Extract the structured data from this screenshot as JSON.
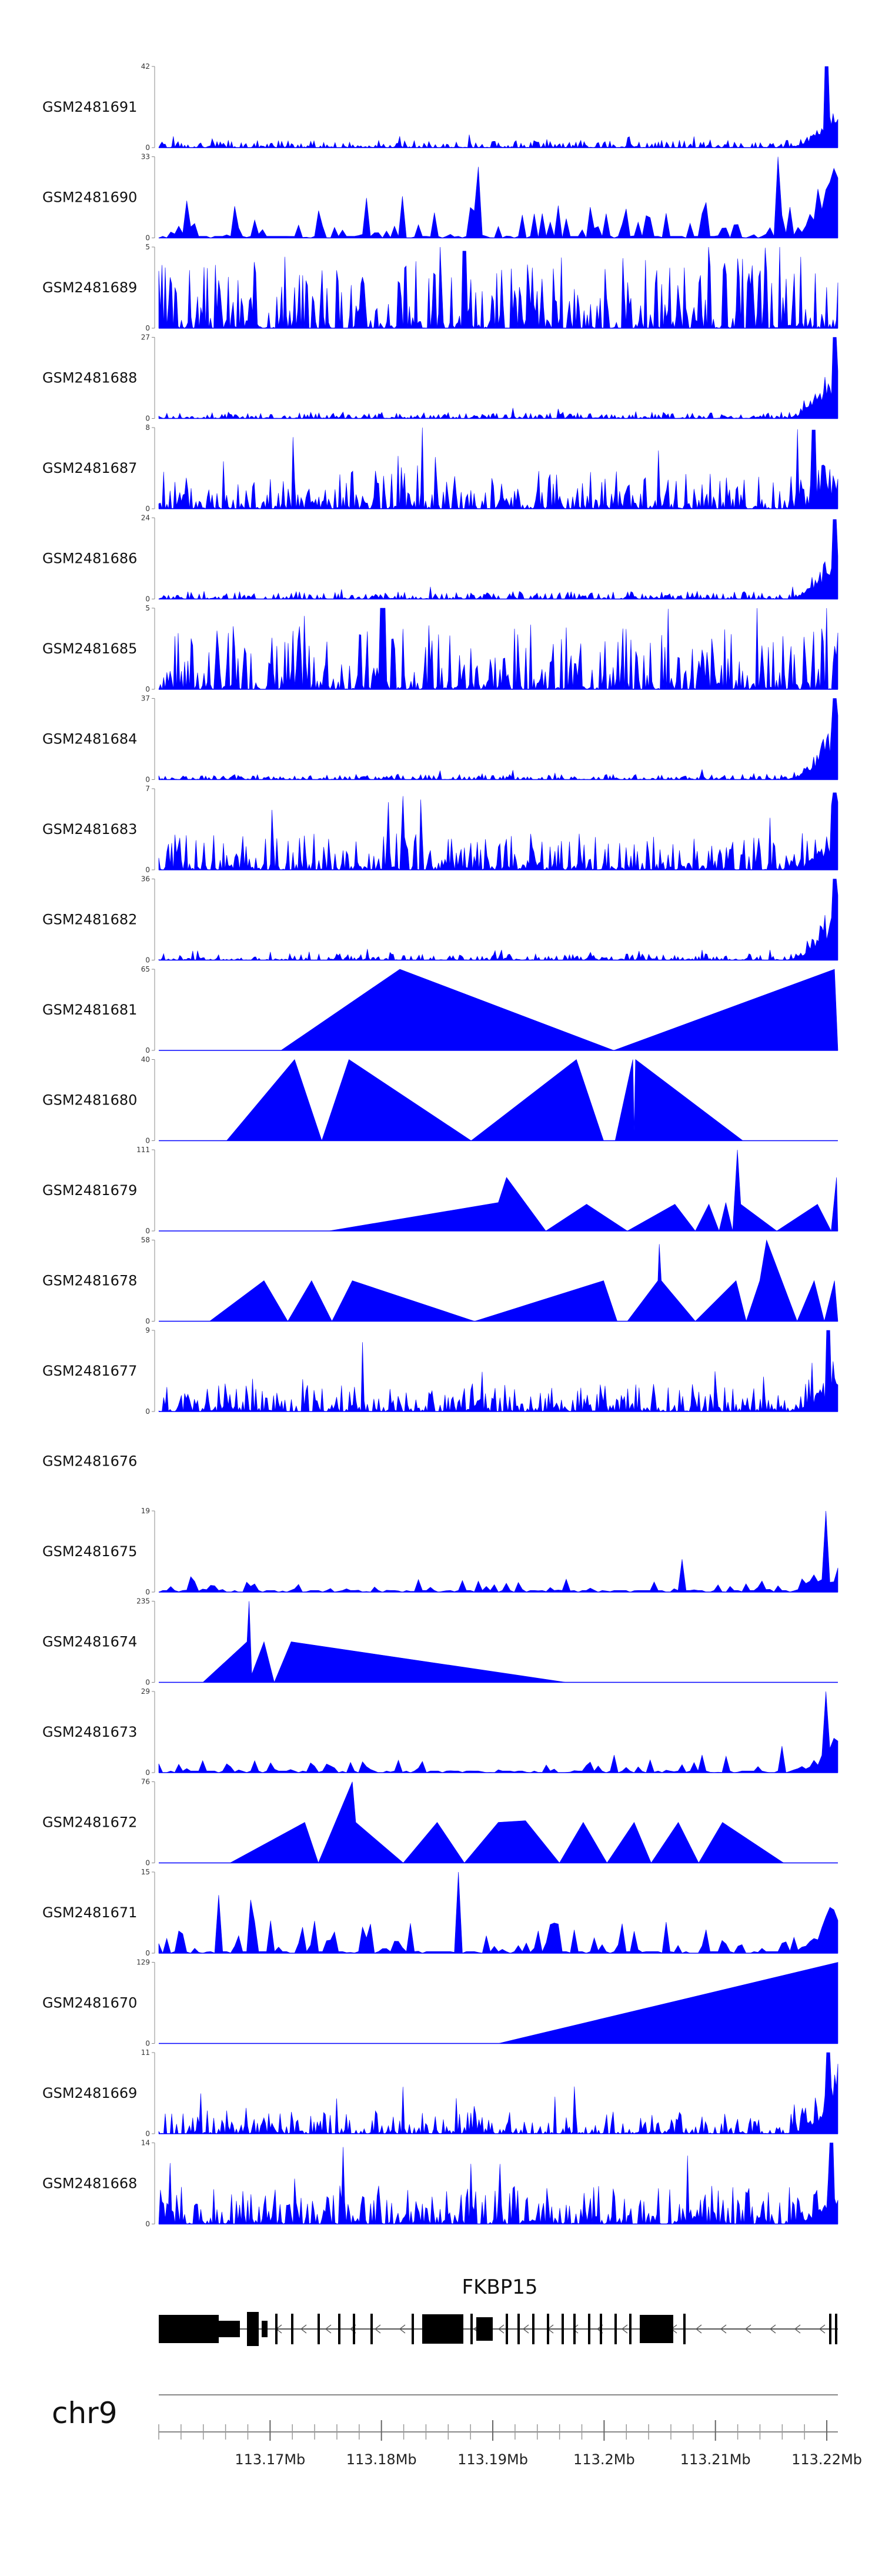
{
  "colors": {
    "signal": "#0000ff",
    "axis": "#888888",
    "gene": "#000000"
  },
  "chart_data": {
    "type": "area",
    "title": "",
    "xlabel": "",
    "ylabel": "",
    "x_range_mb": [
      113.16,
      113.221
    ],
    "x_ticks": [
      "113.17Mb",
      "113.18Mb",
      "113.19Mb",
      "113.2Mb",
      "113.21Mb",
      "113.22Mb"
    ],
    "x_tick_values": [
      113.17,
      113.18,
      113.19,
      113.2,
      113.21,
      113.22
    ],
    "chromosome": "chr9",
    "gene": {
      "name": "FKBP15",
      "strand": "-",
      "start_mb": 113.16,
      "end_mb": 113.221
    },
    "tracks": [
      {
        "name": "GSM2481691",
        "ymin": "0",
        "ymax": "42",
        "max": 42,
        "pattern": "dense",
        "seed": 1,
        "base": 0.06,
        "tail": [
          0.04,
          0.5
        ],
        "peak": [
          0.983,
          1.0
        ]
      },
      {
        "name": "GSM2481690",
        "ymin": "0",
        "ymax": "33",
        "max": 33,
        "pattern": "dense",
        "seed": 2,
        "base": 0.28,
        "tail": [
          0.06,
          0.8
        ],
        "peak": [
          0.91,
          1.0
        ],
        "start": 0.0,
        "sparse": true
      },
      {
        "name": "GSM2481689",
        "ymin": "0",
        "ymax": "5",
        "max": 5,
        "pattern": "dense",
        "seed": 3,
        "base": 0.55,
        "tail": [
          0.0,
          0.0
        ],
        "peak": [
          0.45,
          0.95
        ]
      },
      {
        "name": "GSM2481688",
        "ymin": "0",
        "ymax": "27",
        "max": 27,
        "pattern": "dense",
        "seed": 4,
        "base": 0.05,
        "tail": [
          0.06,
          0.9
        ],
        "peak": [
          0.995,
          1.0
        ]
      },
      {
        "name": "GSM2481687",
        "ymin": "0",
        "ymax": "8",
        "max": 8,
        "pattern": "dense",
        "seed": 5,
        "base": 0.3,
        "tail": [
          0.03,
          0.4
        ],
        "peak": [
          0.965,
          0.97
        ]
      },
      {
        "name": "GSM2481686",
        "ymin": "0",
        "ymax": "24",
        "max": 24,
        "pattern": "dense",
        "seed": 6,
        "base": 0.06,
        "tail": [
          0.05,
          0.8
        ],
        "peak": [
          0.995,
          0.98
        ]
      },
      {
        "name": "GSM2481685",
        "ymin": "0",
        "ymax": "5",
        "max": 5,
        "pattern": "dense",
        "seed": 7,
        "base": 0.5,
        "tail": [
          0.0,
          0.0
        ],
        "peak": [
          0.33,
          1.0
        ]
      },
      {
        "name": "GSM2481684",
        "ymin": "0",
        "ymax": "37",
        "max": 37,
        "pattern": "dense",
        "seed": 8,
        "base": 0.04,
        "tail": [
          0.07,
          0.95
        ],
        "peak": [
          0.995,
          1.0
        ]
      },
      {
        "name": "GSM2481683",
        "ymin": "0",
        "ymax": "7",
        "max": 7,
        "pattern": "dense",
        "seed": 9,
        "base": 0.28,
        "tail": [
          0.03,
          0.5
        ],
        "peak": [
          0.995,
          0.95
        ]
      },
      {
        "name": "GSM2481682",
        "ymin": "0",
        "ymax": "36",
        "max": 36,
        "pattern": "dense",
        "seed": 10,
        "base": 0.05,
        "tail": [
          0.04,
          0.95
        ],
        "peak": [
          0.995,
          1.0
        ]
      },
      {
        "name": "GSM2481681",
        "ymin": "0",
        "ymax": "65",
        "max": 65,
        "pattern": "poly",
        "points": [
          [
            0.18,
            0
          ],
          [
            0.355,
            1.0
          ],
          [
            0.67,
            0
          ],
          [
            0.995,
            1.0
          ],
          [
            1.0,
            0
          ]
        ]
      },
      {
        "name": "GSM2481680",
        "ymin": "0",
        "ymax": "40",
        "max": 40,
        "pattern": "poly",
        "points": [
          [
            0.1,
            0
          ],
          [
            0.2,
            1.0
          ],
          [
            0.24,
            0
          ],
          [
            0.28,
            1.0
          ],
          [
            0.46,
            0
          ],
          [
            0.615,
            1.0
          ],
          [
            0.655,
            0
          ],
          [
            0.672,
            0
          ],
          [
            0.698,
            1.0
          ],
          [
            0.7,
            0.12
          ],
          [
            0.702,
            1.0
          ],
          [
            0.86,
            0
          ]
        ]
      },
      {
        "name": "GSM2481679",
        "ymin": "0",
        "ymax": "111",
        "max": 111,
        "pattern": "poly",
        "points": [
          [
            0.25,
            0
          ],
          [
            0.5,
            0.35
          ],
          [
            0.512,
            0.66
          ],
          [
            0.57,
            0
          ],
          [
            0.63,
            0.33
          ],
          [
            0.69,
            0
          ],
          [
            0.76,
            0.33
          ],
          [
            0.79,
            0
          ],
          [
            0.81,
            0.33
          ],
          [
            0.825,
            0
          ],
          [
            0.835,
            0.35
          ],
          [
            0.845,
            0
          ],
          [
            0.852,
            1.0
          ],
          [
            0.857,
            0.33
          ],
          [
            0.91,
            0
          ],
          [
            0.97,
            0.33
          ],
          [
            0.99,
            0
          ],
          [
            0.998,
            0.66
          ],
          [
            1.0,
            0
          ]
        ]
      },
      {
        "name": "GSM2481678",
        "ymin": "0",
        "ymax": "58",
        "max": 58,
        "pattern": "poly",
        "points": [
          [
            0.075,
            0
          ],
          [
            0.155,
            0.5
          ],
          [
            0.19,
            0
          ],
          [
            0.225,
            0.5
          ],
          [
            0.255,
            0
          ],
          [
            0.285,
            0.5
          ],
          [
            0.465,
            0
          ],
          [
            0.655,
            0.5
          ],
          [
            0.675,
            0
          ],
          [
            0.69,
            0
          ],
          [
            0.735,
            0.5
          ],
          [
            0.737,
            0.95
          ],
          [
            0.74,
            0.5
          ],
          [
            0.79,
            0
          ],
          [
            0.85,
            0.5
          ],
          [
            0.865,
            0
          ],
          [
            0.885,
            0.5
          ],
          [
            0.895,
            1.0
          ],
          [
            0.94,
            0
          ],
          [
            0.965,
            0.5
          ],
          [
            0.98,
            0
          ],
          [
            0.995,
            0.5
          ],
          [
            1.0,
            0
          ]
        ]
      },
      {
        "name": "GSM2481677",
        "ymin": "0",
        "ymax": "9",
        "max": 9,
        "pattern": "dense",
        "seed": 11,
        "base": 0.22,
        "tail": [
          0.04,
          0.6
        ],
        "peak": [
          0.985,
          1.0
        ]
      },
      {
        "name": "GSM2481676",
        "ymin": "",
        "ymax": "",
        "max": 0,
        "pattern": "empty"
      },
      {
        "name": "GSM2481675",
        "ymin": "0",
        "ymax": "19",
        "max": 19,
        "pattern": "dense",
        "seed": 12,
        "base": 0.12,
        "tail": [
          0.02,
          0.3
        ],
        "peak": [
          0.983,
          1.0
        ],
        "sparse": true
      },
      {
        "name": "GSM2481674",
        "ymin": "0",
        "ymax": "235",
        "max": 235,
        "pattern": "poly",
        "points": [
          [
            0.065,
            0
          ],
          [
            0.13,
            0.5
          ],
          [
            0.133,
            1.0
          ],
          [
            0.137,
            0.1
          ],
          [
            0.155,
            0.5
          ],
          [
            0.17,
            0
          ],
          [
            0.195,
            0.5
          ],
          [
            0.6,
            0
          ]
        ]
      },
      {
        "name": "GSM2481673",
        "ymin": "0",
        "ymax": "29",
        "max": 29,
        "pattern": "dense",
        "seed": 13,
        "base": 0.1,
        "tail": [
          0.03,
          0.5
        ],
        "peak": [
          0.983,
          1.0
        ],
        "sparse": true
      },
      {
        "name": "GSM2481672",
        "ymin": "0",
        "ymax": "76",
        "max": 76,
        "pattern": "poly",
        "points": [
          [
            0.105,
            0
          ],
          [
            0.215,
            0.5
          ],
          [
            0.235,
            0
          ],
          [
            0.26,
            0.5
          ],
          [
            0.285,
            1.0
          ],
          [
            0.29,
            0.5
          ],
          [
            0.36,
            0
          ],
          [
            0.41,
            0.5
          ],
          [
            0.45,
            0
          ],
          [
            0.5,
            0.5
          ],
          [
            0.54,
            0.52
          ],
          [
            0.59,
            0
          ],
          [
            0.625,
            0.5
          ],
          [
            0.66,
            0
          ],
          [
            0.7,
            0.5
          ],
          [
            0.725,
            0
          ],
          [
            0.765,
            0.5
          ],
          [
            0.795,
            0
          ],
          [
            0.83,
            0.5
          ],
          [
            0.92,
            0
          ]
        ]
      },
      {
        "name": "GSM2481671",
        "ymin": "0",
        "ymax": "15",
        "max": 15,
        "pattern": "dense",
        "seed": 14,
        "base": 0.25,
        "tail": [
          0.03,
          0.6
        ],
        "peak": [
          0.44,
          1.0
        ],
        "sparse": true
      },
      {
        "name": "GSM2481670",
        "ymin": "0",
        "ymax": "129",
        "max": 129,
        "pattern": "poly",
        "points": [
          [
            0.5,
            0
          ],
          [
            1.0,
            1.0
          ],
          [
            1.0,
            0
          ]
        ]
      },
      {
        "name": "GSM2481669",
        "ymin": "0",
        "ymax": "11",
        "max": 11,
        "pattern": "dense",
        "seed": 15,
        "base": 0.18,
        "tail": [
          0.04,
          0.7
        ],
        "peak": [
          0.985,
          1.0
        ]
      },
      {
        "name": "GSM2481668",
        "ymin": "0",
        "ymax": "14",
        "max": 14,
        "pattern": "dense",
        "seed": 16,
        "base": 0.3,
        "tail": [
          0.02,
          0.4
        ],
        "peak": [
          0.99,
          1.0
        ]
      }
    ]
  }
}
